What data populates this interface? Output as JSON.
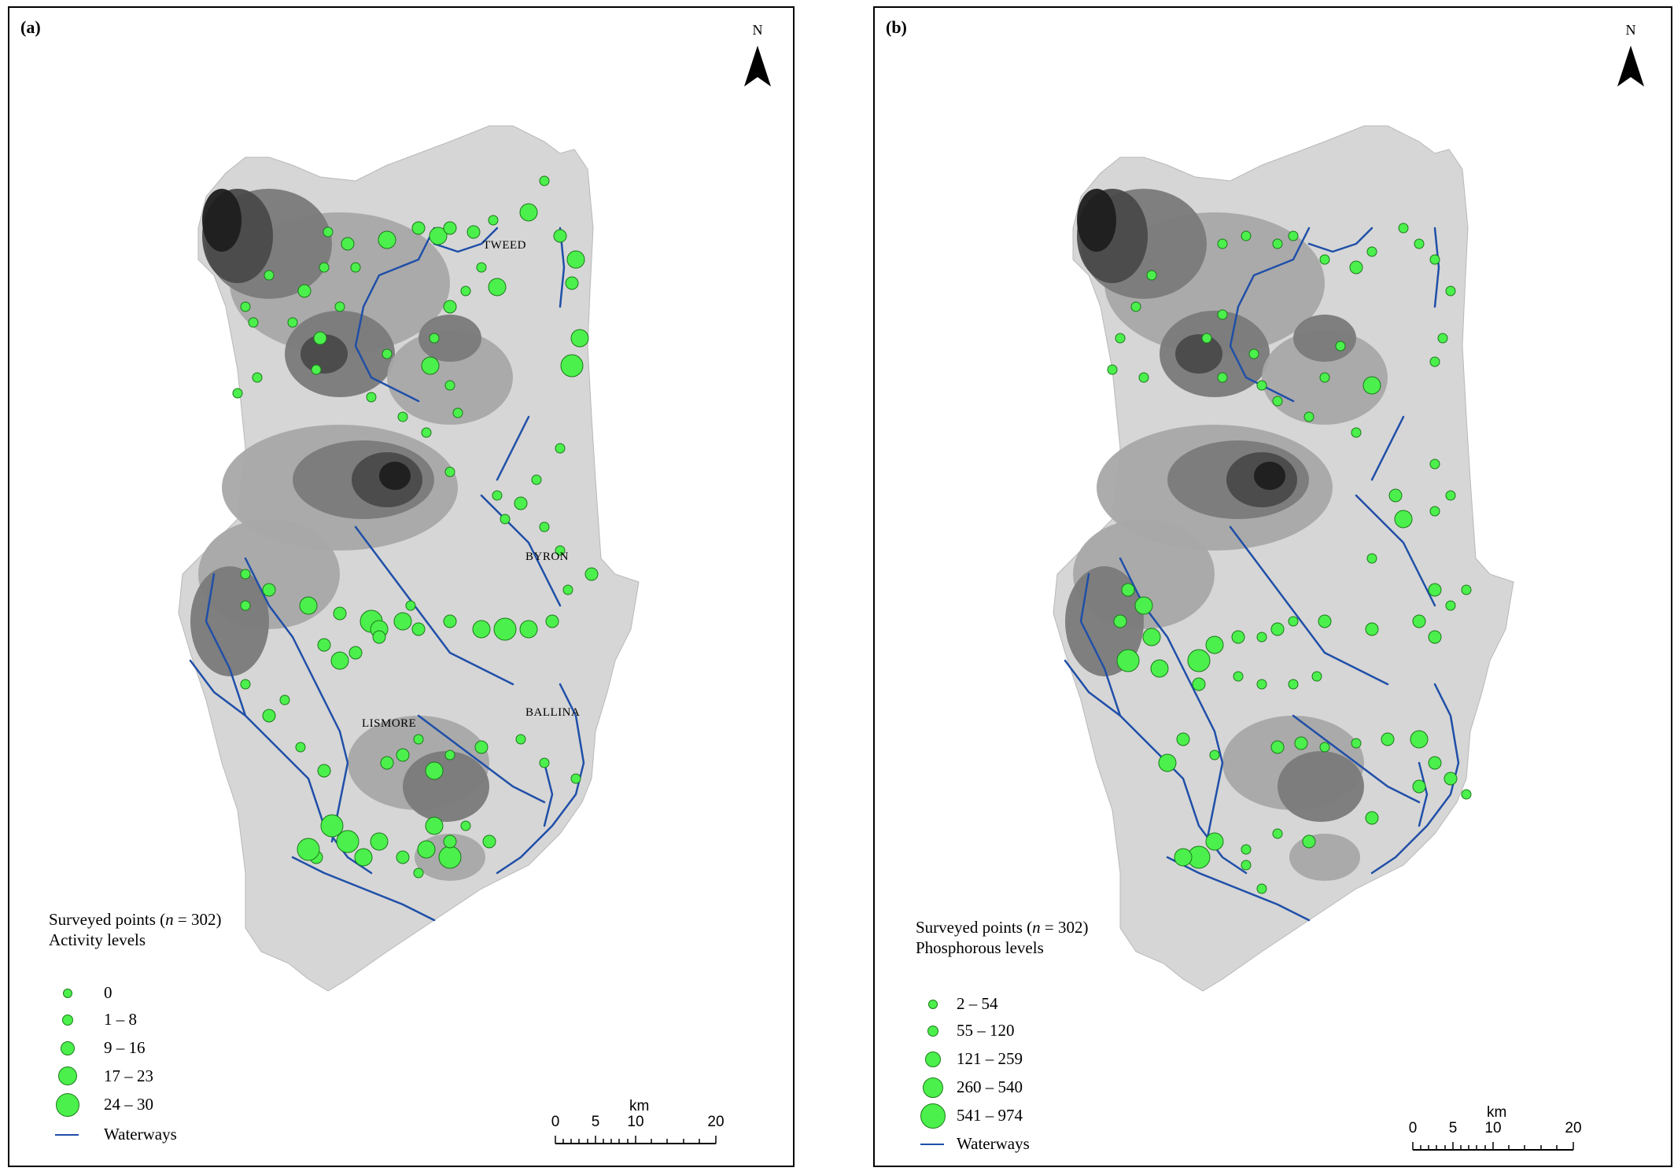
{
  "panels": [
    {
      "label": "(a)",
      "north": "N",
      "towns": [
        "TWEED",
        "BYRON",
        "LISMORE",
        "BALLINA"
      ],
      "legend": {
        "line1_prefix": "Surveyed points (",
        "line1_n": "n",
        "line1_suffix": " = 302)",
        "line2": "Activity levels",
        "classes": [
          "0",
          "1 – 8",
          "9 – 16",
          "17 – 23",
          "24 – 30"
        ],
        "waterways": "Waterways"
      },
      "scale": {
        "unit": "km",
        "ticks": [
          "0",
          "5",
          "10",
          "20"
        ]
      }
    },
    {
      "label": "(b)",
      "north": "N",
      "legend": {
        "line1_prefix": "Surveyed points (",
        "line1_n": "n",
        "line1_suffix": " = 302)",
        "line2": "Phosphorous levels",
        "classes": [
          "2 – 54",
          "55 – 120",
          "121 – 259",
          "260 – 540",
          "541 – 974"
        ],
        "waterways": "Waterways"
      },
      "scale": {
        "unit": "km",
        "ticks": [
          "0",
          "5",
          "10",
          "20"
        ]
      }
    }
  ],
  "colors": {
    "land": "#d6d6d6",
    "relief_low": "#a8a8a8",
    "relief_mid": "#7a7a7a",
    "relief_high": "#4a4a4a",
    "relief_peak": "#1e1e1e",
    "waterways": "#1f4fa8",
    "points": "#4cf04c",
    "point_outline": "#1a7a1a"
  }
}
